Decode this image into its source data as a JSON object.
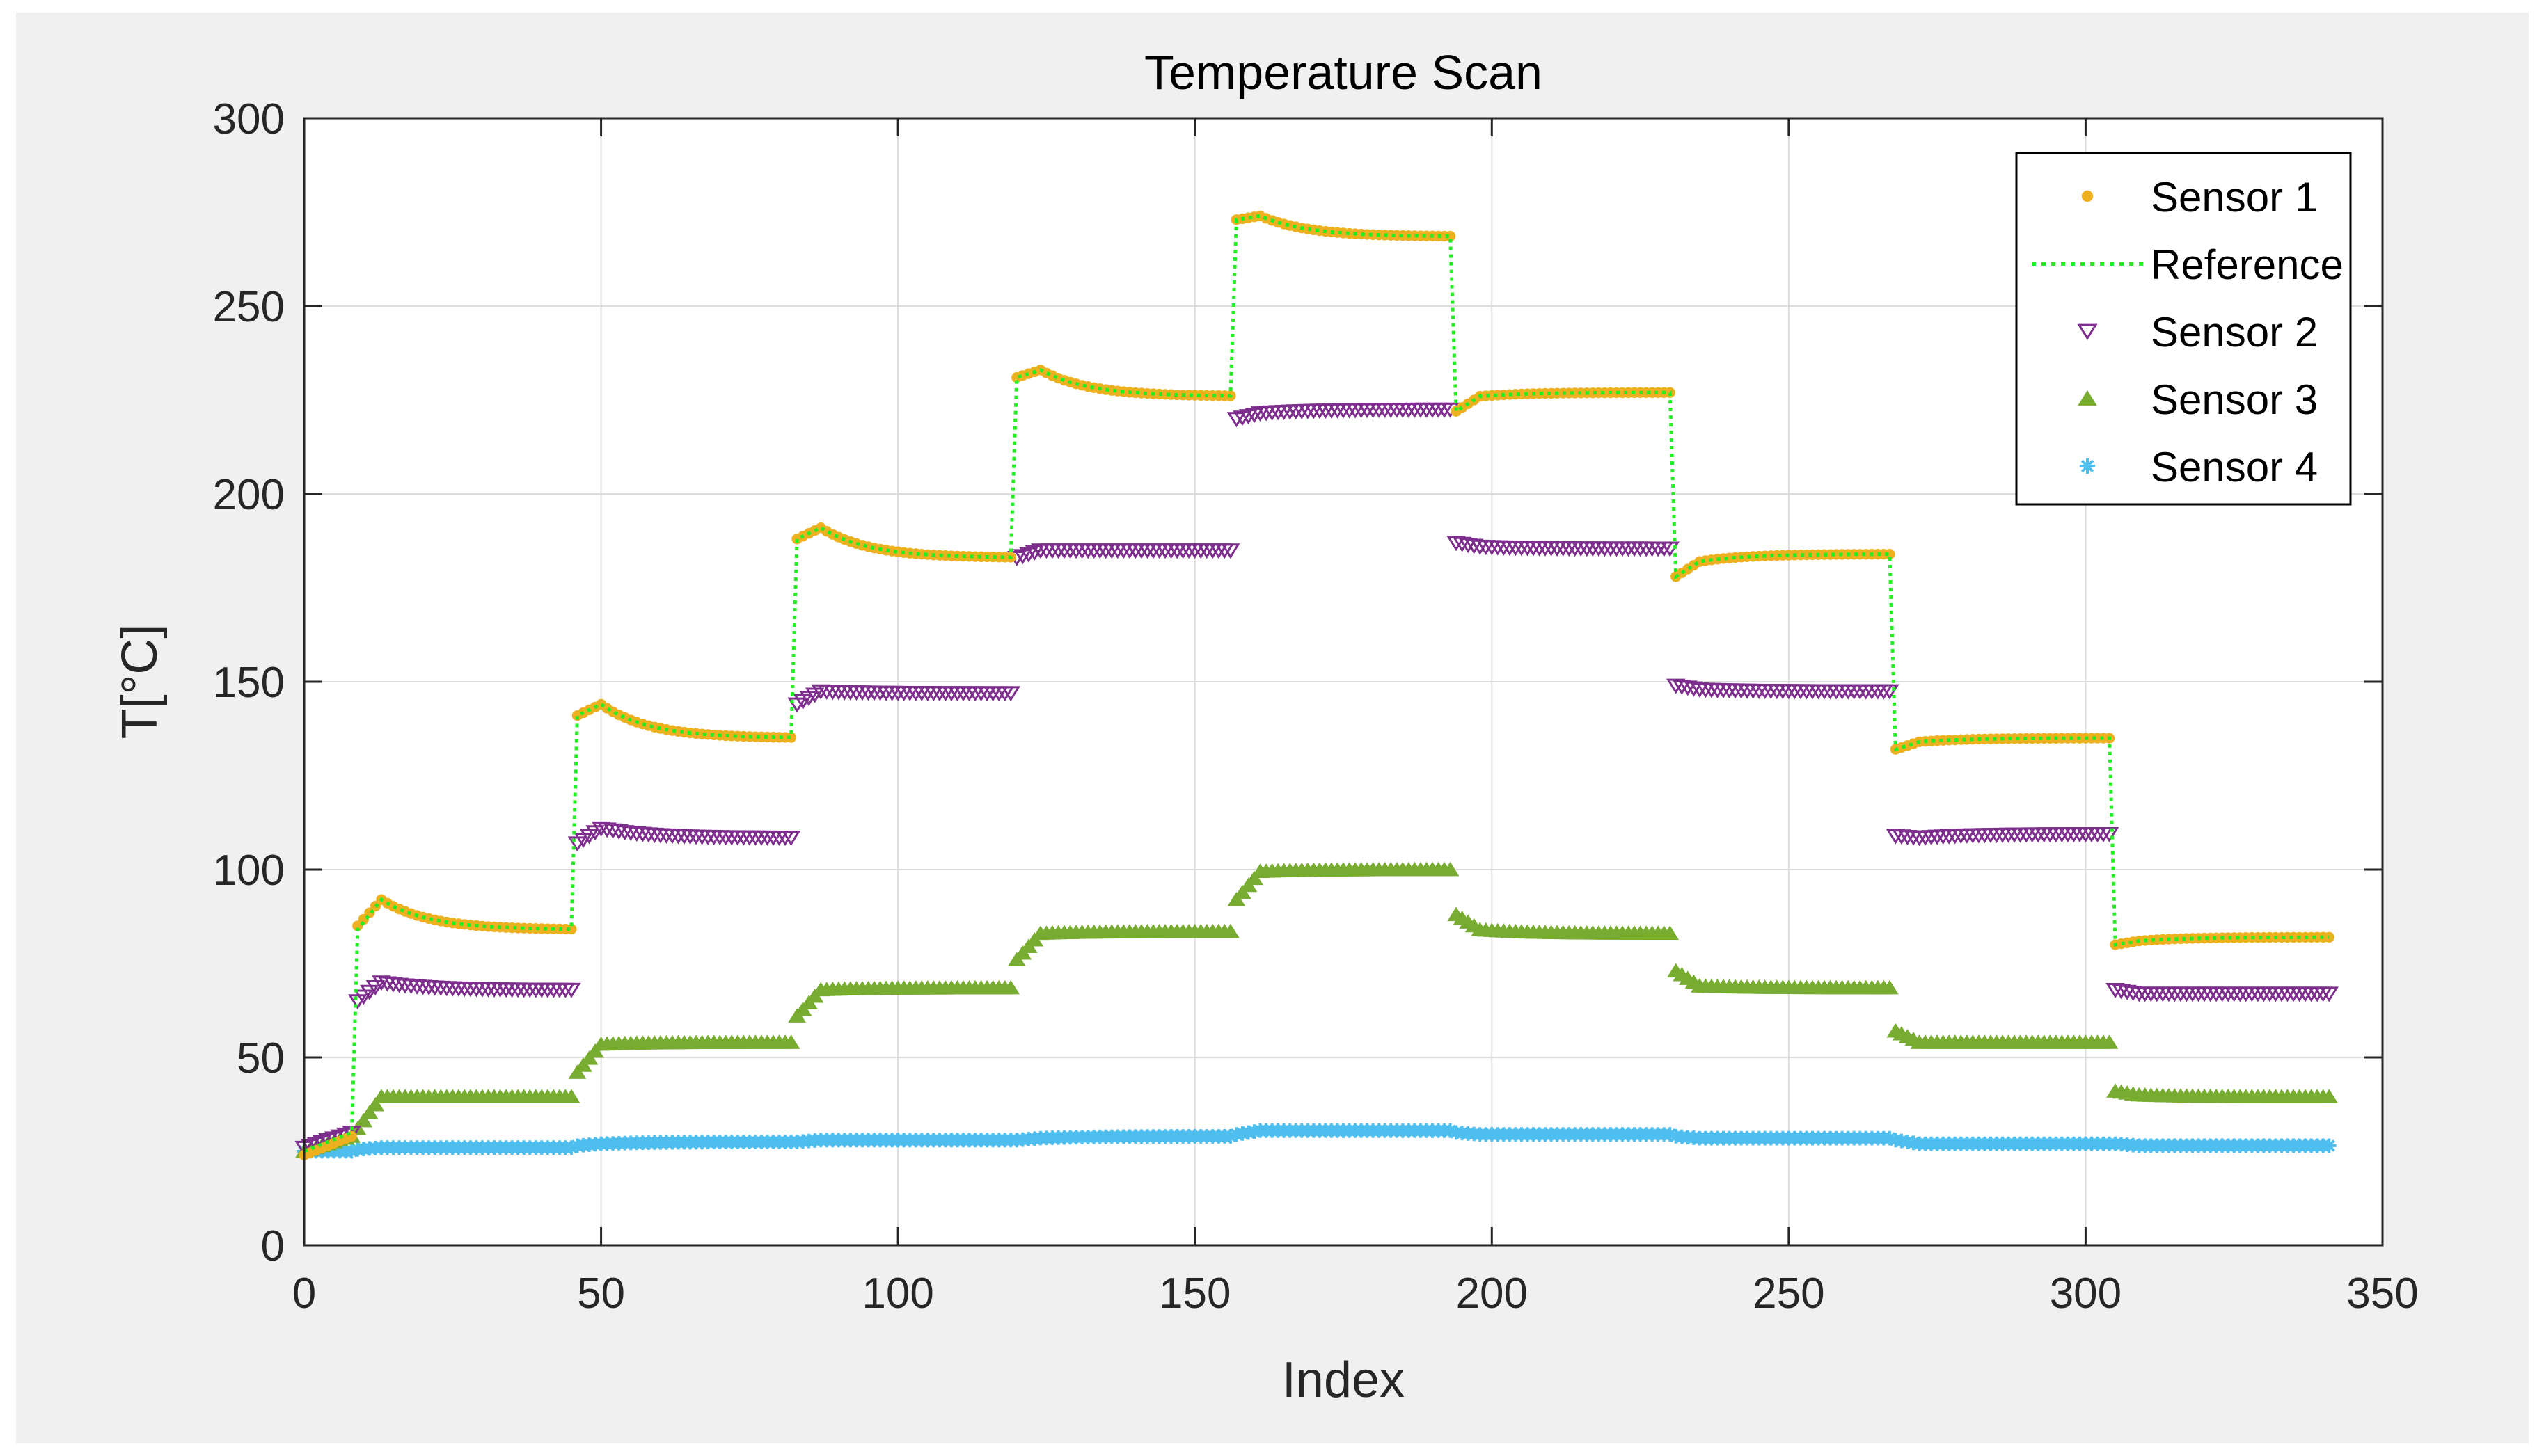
{
  "chart_data": {
    "type": "scatter",
    "title": "Temperature Scan",
    "xlabel": "Index",
    "ylabel": "T[°C]",
    "xlim": [
      0,
      350
    ],
    "ylim": [
      0,
      300
    ],
    "xticks": [
      0,
      50,
      100,
      150,
      200,
      250,
      300,
      350
    ],
    "yticks": [
      0,
      50,
      100,
      150,
      200,
      250,
      300
    ],
    "grid": true,
    "legend_position": "top-right",
    "x_start": 0,
    "x_end": 341,
    "segments": [
      {
        "start": 0,
        "end": 8,
        "reference": [
          25,
          30
        ],
        "sensor1": [
          24,
          29
        ],
        "sensor2": [
          26,
          30
        ],
        "sensor3": [
          25,
          29
        ],
        "sensor4": [
          25,
          25
        ]
      },
      {
        "start": 9,
        "end": 45,
        "reference": [
          84,
          92,
          84
        ],
        "sensor1": [
          85,
          92,
          84
        ],
        "sensor2": [
          65,
          70,
          68
        ],
        "sensor3": [
          31,
          39.5,
          39.5
        ],
        "sensor4": [
          25.5,
          26,
          26
        ]
      },
      {
        "start": 46,
        "end": 82,
        "reference": [
          141,
          144,
          135
        ],
        "sensor1": [
          141,
          144,
          135
        ],
        "sensor2": [
          107,
          111,
          108.5
        ],
        "sensor3": [
          46,
          53.5,
          54
        ],
        "sensor4": [
          26.5,
          27,
          27.5
        ]
      },
      {
        "start": 83,
        "end": 119,
        "reference": [
          188,
          191,
          183
        ],
        "sensor1": [
          188,
          191,
          183
        ],
        "sensor2": [
          144,
          147.5,
          147
        ],
        "sensor3": [
          61,
          68,
          68.5
        ],
        "sensor4": [
          27.5,
          28,
          28
        ]
      },
      {
        "start": 120,
        "end": 156,
        "reference": [
          231,
          233,
          226
        ],
        "sensor1": [
          231,
          233,
          226
        ],
        "sensor2": [
          183,
          185,
          185
        ],
        "sensor3": [
          76,
          83,
          83.5
        ],
        "sensor4": [
          28,
          28.5,
          29
        ]
      },
      {
        "start": 157,
        "end": 193,
        "reference": [
          273,
          274,
          268.5
        ],
        "sensor1": [
          273,
          274,
          268.5
        ],
        "sensor2": [
          220,
          221.5,
          222.5
        ],
        "sensor3": [
          92,
          99.5,
          100
        ],
        "sensor4": [
          29.5,
          30.5,
          30.5
        ]
      },
      {
        "start": 194,
        "end": 230,
        "reference": [
          222,
          226,
          227
        ],
        "sensor1": [
          222,
          226,
          227
        ],
        "sensor2": [
          187,
          186,
          185.5
        ],
        "sensor3": [
          88,
          84,
          83
        ],
        "sensor4": [
          30,
          29.5,
          29.5
        ]
      },
      {
        "start": 231,
        "end": 267,
        "reference": [
          178,
          182,
          184
        ],
        "sensor1": [
          178,
          182,
          184
        ],
        "sensor2": [
          149,
          148,
          147.5
        ],
        "sensor3": [
          73,
          69,
          68.5
        ],
        "sensor4": [
          29,
          28.5,
          28.5
        ]
      },
      {
        "start": 268,
        "end": 304,
        "reference": [
          132,
          134,
          135
        ],
        "sensor1": [
          132,
          134,
          135
        ],
        "sensor2": [
          109,
          108.5,
          109.5
        ],
        "sensor3": [
          57,
          54,
          54
        ],
        "sensor4": [
          28,
          27,
          27
        ]
      },
      {
        "start": 305,
        "end": 341,
        "reference": [
          80,
          81,
          82
        ],
        "sensor1": [
          80,
          81,
          82
        ],
        "sensor2": [
          68,
          67,
          67
        ],
        "sensor3": [
          41,
          40,
          39.5
        ],
        "sensor4": [
          27,
          26.5,
          26.5
        ]
      }
    ],
    "series": [
      {
        "name": "Sensor 1",
        "key": "sensor1",
        "marker": "circle",
        "color": "#edb120"
      },
      {
        "name": "Reference",
        "key": "reference",
        "marker": "dotted-line",
        "color": "#22ee22"
      },
      {
        "name": "Sensor 2",
        "key": "sensor2",
        "marker": "triangle-down",
        "color": "#7e2f8e"
      },
      {
        "name": "Sensor 3",
        "key": "sensor3",
        "marker": "triangle-up",
        "color": "#77ac30"
      },
      {
        "name": "Sensor 4",
        "key": "sensor4",
        "marker": "star",
        "color": "#4dbeee"
      }
    ]
  },
  "colors": {
    "figure_bg": "#f0f0f0",
    "axes_bg": "#ffffff",
    "grid": "#dcdcdc",
    "axis": "#262626"
  }
}
